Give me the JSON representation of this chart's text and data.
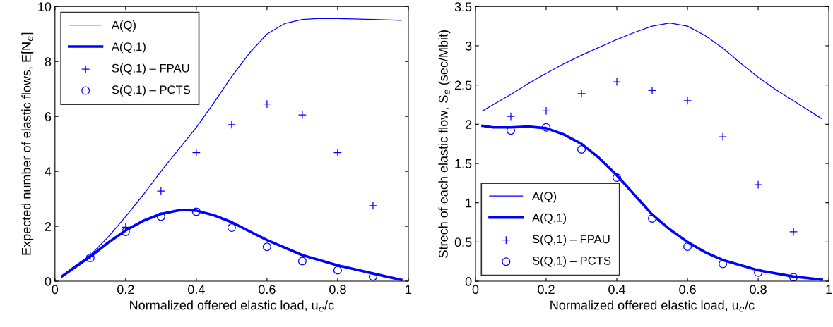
{
  "chart_data": [
    {
      "type": "line",
      "xlabel": "Normalized offered elastic load, u$_{e}$/c",
      "ylabel": "Expected number of elastic flows, E[N$_{e}$]",
      "xlim": [
        0,
        1
      ],
      "ylim": [
        0,
        10
      ],
      "xticks": [
        0,
        0.2,
        0.4,
        0.6,
        0.8,
        1
      ],
      "yticks": [
        0,
        2,
        4,
        6,
        8,
        10
      ],
      "grid": false,
      "legend": "top left",
      "series": [
        {
          "name": "A(Q)",
          "color": "#0000ff",
          "x": [
            0.02,
            0.05,
            0.1,
            0.15,
            0.2,
            0.25,
            0.3,
            0.35,
            0.4,
            0.45,
            0.5,
            0.55,
            0.6,
            0.65,
            0.7,
            0.75,
            0.8,
            0.9,
            0.98
          ],
          "values": [
            0.18,
            0.5,
            0.95,
            1.6,
            2.35,
            3.15,
            4.0,
            4.8,
            5.6,
            6.5,
            7.45,
            8.3,
            9.0,
            9.38,
            9.53,
            9.57,
            9.56,
            9.53,
            9.5
          ]
        },
        {
          "name": "A(Q,1)",
          "color": "#0000ff",
          "x": [
            0.02,
            0.05,
            0.1,
            0.15,
            0.2,
            0.25,
            0.3,
            0.35,
            0.37,
            0.4,
            0.45,
            0.5,
            0.55,
            0.6,
            0.7,
            0.8,
            0.9,
            0.98
          ],
          "values": [
            0.18,
            0.45,
            0.9,
            1.4,
            1.85,
            2.2,
            2.45,
            2.58,
            2.6,
            2.57,
            2.4,
            2.15,
            1.82,
            1.5,
            0.95,
            0.58,
            0.28,
            0.05
          ]
        },
        {
          "name": "S(Q,1) – FPAU",
          "type": "scatter",
          "marker": "cross",
          "color": "#0000ff",
          "x": [
            0.1,
            0.2,
            0.3,
            0.4,
            0.5,
            0.6,
            0.7,
            0.8,
            0.9
          ],
          "values": [
            0.92,
            1.97,
            3.28,
            4.68,
            5.7,
            6.45,
            6.05,
            4.68,
            2.75
          ]
        },
        {
          "name": "S(Q,1) – PCTS",
          "type": "scatter",
          "marker": "circle",
          "color": "#0000ff",
          "x": [
            0.1,
            0.2,
            0.3,
            0.4,
            0.5,
            0.6,
            0.7,
            0.8,
            0.9
          ],
          "values": [
            0.85,
            1.8,
            2.35,
            2.53,
            1.95,
            1.25,
            0.73,
            0.4,
            0.17
          ]
        }
      ]
    },
    {
      "type": "line",
      "xlabel": "Normalized offered elastic load, u$_{e}$/c",
      "ylabel": "Strech of each elastic flow, S$_{e}$ (sec/Mbit)",
      "xlim": [
        0,
        1
      ],
      "ylim": [
        0,
        3.5
      ],
      "xticks": [
        0,
        0.2,
        0.4,
        0.6,
        0.8,
        1
      ],
      "yticks": [
        0,
        0.5,
        1,
        1.5,
        2,
        2.5,
        3,
        3.5
      ],
      "grid": false,
      "legend": "bottom left",
      "series": [
        {
          "name": "A(Q)",
          "color": "#0000ff",
          "x": [
            0.02,
            0.05,
            0.1,
            0.15,
            0.2,
            0.25,
            0.3,
            0.35,
            0.4,
            0.45,
            0.5,
            0.55,
            0.6,
            0.65,
            0.7,
            0.75,
            0.8,
            0.85,
            0.9,
            0.98
          ],
          "values": [
            2.17,
            2.25,
            2.38,
            2.52,
            2.65,
            2.77,
            2.88,
            2.98,
            3.08,
            3.17,
            3.25,
            3.29,
            3.25,
            3.13,
            2.97,
            2.78,
            2.6,
            2.44,
            2.3,
            2.07
          ]
        },
        {
          "name": "A(Q,1)",
          "color": "#0000ff",
          "x": [
            0.02,
            0.05,
            0.1,
            0.15,
            0.2,
            0.25,
            0.3,
            0.35,
            0.4,
            0.45,
            0.5,
            0.55,
            0.6,
            0.65,
            0.7,
            0.8,
            0.9,
            0.98
          ],
          "values": [
            1.98,
            1.96,
            1.96,
            1.97,
            1.95,
            1.87,
            1.75,
            1.57,
            1.35,
            1.1,
            0.85,
            0.66,
            0.5,
            0.37,
            0.27,
            0.14,
            0.06,
            0.02
          ]
        },
        {
          "name": "S(Q,1) – FPAU",
          "type": "scatter",
          "marker": "cross",
          "color": "#0000ff",
          "x": [
            0.1,
            0.2,
            0.3,
            0.4,
            0.5,
            0.6,
            0.7,
            0.8,
            0.9
          ],
          "values": [
            2.1,
            2.17,
            2.39,
            2.54,
            2.43,
            2.3,
            1.84,
            1.23,
            0.63
          ]
        },
        {
          "name": "S(Q,1) – PCTS",
          "type": "scatter",
          "marker": "circle",
          "color": "#0000ff",
          "x": [
            0.1,
            0.2,
            0.3,
            0.4,
            0.5,
            0.6,
            0.7,
            0.8,
            0.9
          ],
          "values": [
            1.92,
            1.96,
            1.68,
            1.32,
            0.8,
            0.44,
            0.22,
            0.11,
            0.05
          ]
        }
      ]
    }
  ]
}
